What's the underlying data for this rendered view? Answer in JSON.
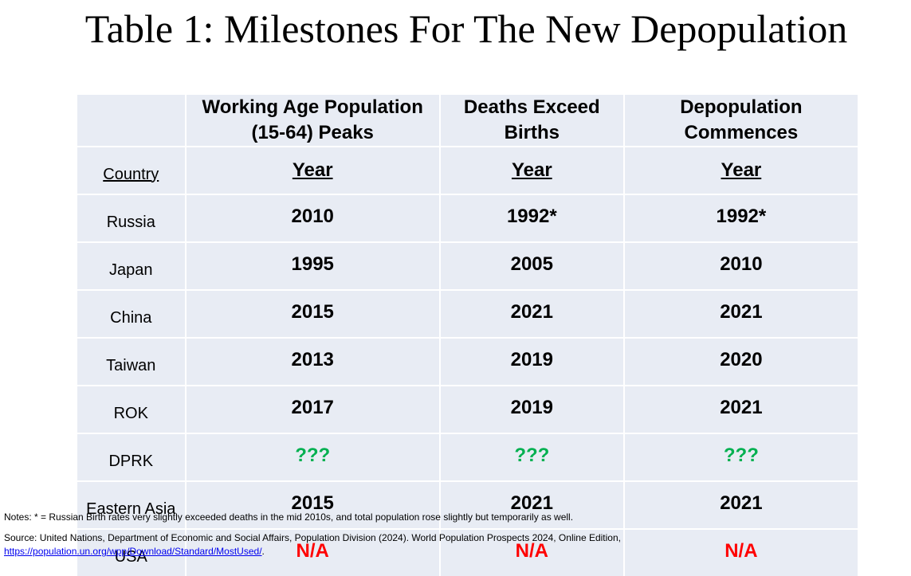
{
  "title": "Table 1: Milestones For The New Depopulation",
  "headers": {
    "col_a_line1": "Working Age Population",
    "col_a_line2": "(15-64) Peaks",
    "col_b_line1": "Deaths Exceed",
    "col_b_line2": "Births",
    "col_c_line1": "Depopulation",
    "col_c_line2": "Commences"
  },
  "subheaders": {
    "country": "Country",
    "year_a": "Year",
    "year_b": "Year",
    "year_c": "Year"
  },
  "rows": [
    {
      "country": "Russia",
      "working_age_peak": "2010",
      "deaths_exceed_births": "1992*",
      "depopulation": "1992*",
      "color": "#000000"
    },
    {
      "country": "Japan",
      "working_age_peak": "1995",
      "deaths_exceed_births": "2005",
      "depopulation": "2010",
      "color": "#000000"
    },
    {
      "country": "China",
      "working_age_peak": "2015",
      "deaths_exceed_births": "2021",
      "depopulation": "2021",
      "color": "#000000"
    },
    {
      "country": "Taiwan",
      "working_age_peak": "2013",
      "deaths_exceed_births": "2019",
      "depopulation": "2020",
      "color": "#000000"
    },
    {
      "country": "ROK",
      "working_age_peak": "2017",
      "deaths_exceed_births": "2019",
      "depopulation": "2021",
      "color": "#000000"
    },
    {
      "country": "DPRK",
      "working_age_peak": "???",
      "deaths_exceed_births": "???",
      "depopulation": "???",
      "color": "#00b050"
    },
    {
      "country": "Eastern Asia",
      "working_age_peak": "2015",
      "deaths_exceed_births": "2021",
      "depopulation": "2021",
      "color": "#000000"
    },
    {
      "country": "USA",
      "working_age_peak": "N/A",
      "deaths_exceed_births": "N/A",
      "depopulation": "N/A",
      "color": "#ff0000"
    }
  ],
  "notes": "Notes:  * = Russian Birth rates very slightly exceeded deaths in the mid 2010s, and total population rose slightly but temporarily as well.",
  "source": {
    "text": "Source: United Nations, Department of Economic and Social Affairs, Population Division (2024). World Population Prospects 2024, Online Edition,",
    "link": "https://population.un.org/wpp/Download/Standard/MostUsed/",
    "link_suffix": "."
  }
}
